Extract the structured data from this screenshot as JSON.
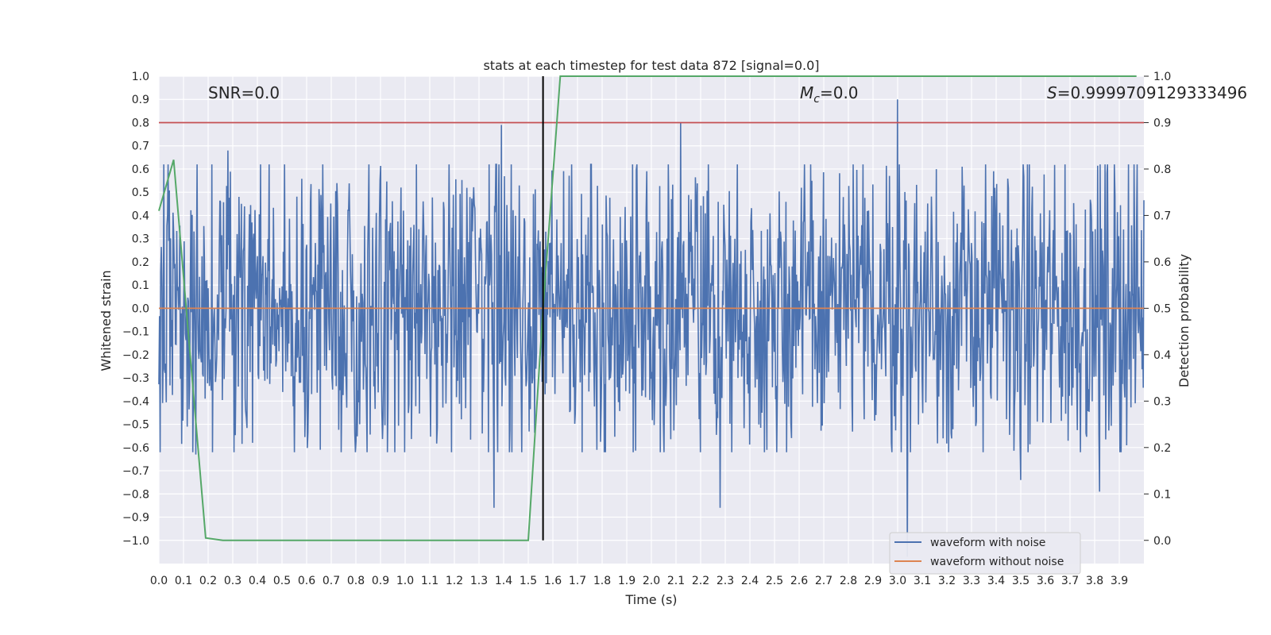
{
  "chart_data": {
    "type": "line",
    "title": "stats at each timestep for test data 872 [signal=0.0]",
    "xlabel": "Time (s)",
    "ylabel": "Whitened strain",
    "y2label": "Detection probability",
    "xlim": [
      0.0,
      4.0
    ],
    "ylim": [
      -1.1,
      1.0
    ],
    "y2lim": [
      -0.05,
      1.0
    ],
    "x_ticks": [
      0.0,
      0.1,
      0.2,
      0.3,
      0.4,
      0.5,
      0.6,
      0.7,
      0.8,
      0.9,
      1.0,
      1.1,
      1.2,
      1.3,
      1.4,
      1.5,
      1.6,
      1.7,
      1.8,
      1.9,
      2.0,
      2.1,
      2.2,
      2.3,
      2.4,
      2.5,
      2.6,
      2.7,
      2.8,
      2.9,
      3.0,
      3.1,
      3.2,
      3.3,
      3.4,
      3.5,
      3.6,
      3.7,
      3.8,
      3.9
    ],
    "x_tick_labels": [
      "0.0",
      "0.1",
      "0.2",
      "0.3",
      "0.4",
      "0.5",
      "0.6",
      "0.7",
      "0.8",
      "0.9",
      "1.0",
      "1.1",
      "1.2",
      "1.3",
      "1.4",
      "1.5",
      "1.6",
      "1.7",
      "1.8",
      "1.9",
      "2.0",
      "2.1",
      "2.2",
      "2.3",
      "2.4",
      "2.5",
      "2.6",
      "2.7",
      "2.8",
      "2.9",
      "3.0",
      "3.1",
      "3.2",
      "3.3",
      "3.4",
      "3.5",
      "3.6",
      "3.7",
      "3.8",
      "3.9"
    ],
    "y_ticks": [
      1.0,
      0.9,
      0.8,
      0.7,
      0.6,
      0.5,
      0.4,
      0.3,
      0.2,
      0.1,
      0.0,
      -0.1,
      -0.2,
      -0.3,
      -0.4,
      -0.5,
      -0.6,
      -0.7,
      -0.8,
      -0.9,
      -1.0
    ],
    "y_tick_labels": [
      "1.0",
      "0.9",
      "0.8",
      "0.7",
      "0.6",
      "0.5",
      "0.4",
      "0.3",
      "0.2",
      "0.1",
      "0.0",
      "−0.1",
      "−0.2",
      "−0.3",
      "−0.4",
      "−0.5",
      "−0.6",
      "−0.7",
      "−0.8",
      "−0.9",
      "−1.0"
    ],
    "y2_ticks": [
      1.0,
      0.9,
      0.8,
      0.7,
      0.6,
      0.5,
      0.4,
      0.3,
      0.2,
      0.1,
      0.0
    ],
    "y2_tick_labels": [
      "1.0",
      "0.9",
      "0.8",
      "0.7",
      "0.6",
      "0.5",
      "0.4",
      "0.3",
      "0.2",
      "0.1",
      "0.0"
    ],
    "noise_series": {
      "name": "waveform with noise",
      "color": "#4c72b0",
      "n_samples": 1600,
      "typical_range": [
        -0.5,
        0.5
      ],
      "spikes": [
        {
          "x": 1.39,
          "y": 0.79
        },
        {
          "x": 2.12,
          "y": 0.8
        },
        {
          "x": 3.0,
          "y": 0.9
        },
        {
          "x": 0.28,
          "y": 0.68
        },
        {
          "x": 1.36,
          "y": -0.86
        },
        {
          "x": 2.28,
          "y": -0.86
        },
        {
          "x": 3.04,
          "y": -1.07
        },
        {
          "x": 3.82,
          "y": -0.79
        },
        {
          "x": 0.15,
          "y": -0.63
        },
        {
          "x": 3.5,
          "y": -0.74
        }
      ]
    },
    "clean_series": {
      "name": "waveform without noise",
      "color": "#dd8452",
      "value": 0.0
    },
    "probability_series": {
      "color": "#55a868",
      "x": [
        0.0,
        0.06,
        0.19,
        0.26,
        1.5,
        1.56,
        1.63,
        3.97
      ],
      "y": [
        0.71,
        0.82,
        0.005,
        0.0,
        0.0,
        0.5,
        1.0,
        1.0
      ]
    },
    "threshold": {
      "value": 0.9,
      "axis": "y2",
      "color": "#c44e52"
    },
    "event_line": {
      "x": 1.56,
      "ymin": 0.0,
      "ymax": 1.0,
      "axis": "y2",
      "color": "#000000"
    },
    "legend": {
      "position": "lower-right"
    }
  },
  "annotations": {
    "snr": "SNR=0.0",
    "mc_symbol": "M",
    "mc_sub": "c",
    "mc_value": "=0.0",
    "s_symbol": "S",
    "s_value": "=0.9999709129333496"
  },
  "legend_labels": [
    "waveform with noise",
    "waveform without noise"
  ],
  "colors": {
    "background": "#eaeaf2",
    "grid": "#ffffff",
    "text": "#262626"
  }
}
